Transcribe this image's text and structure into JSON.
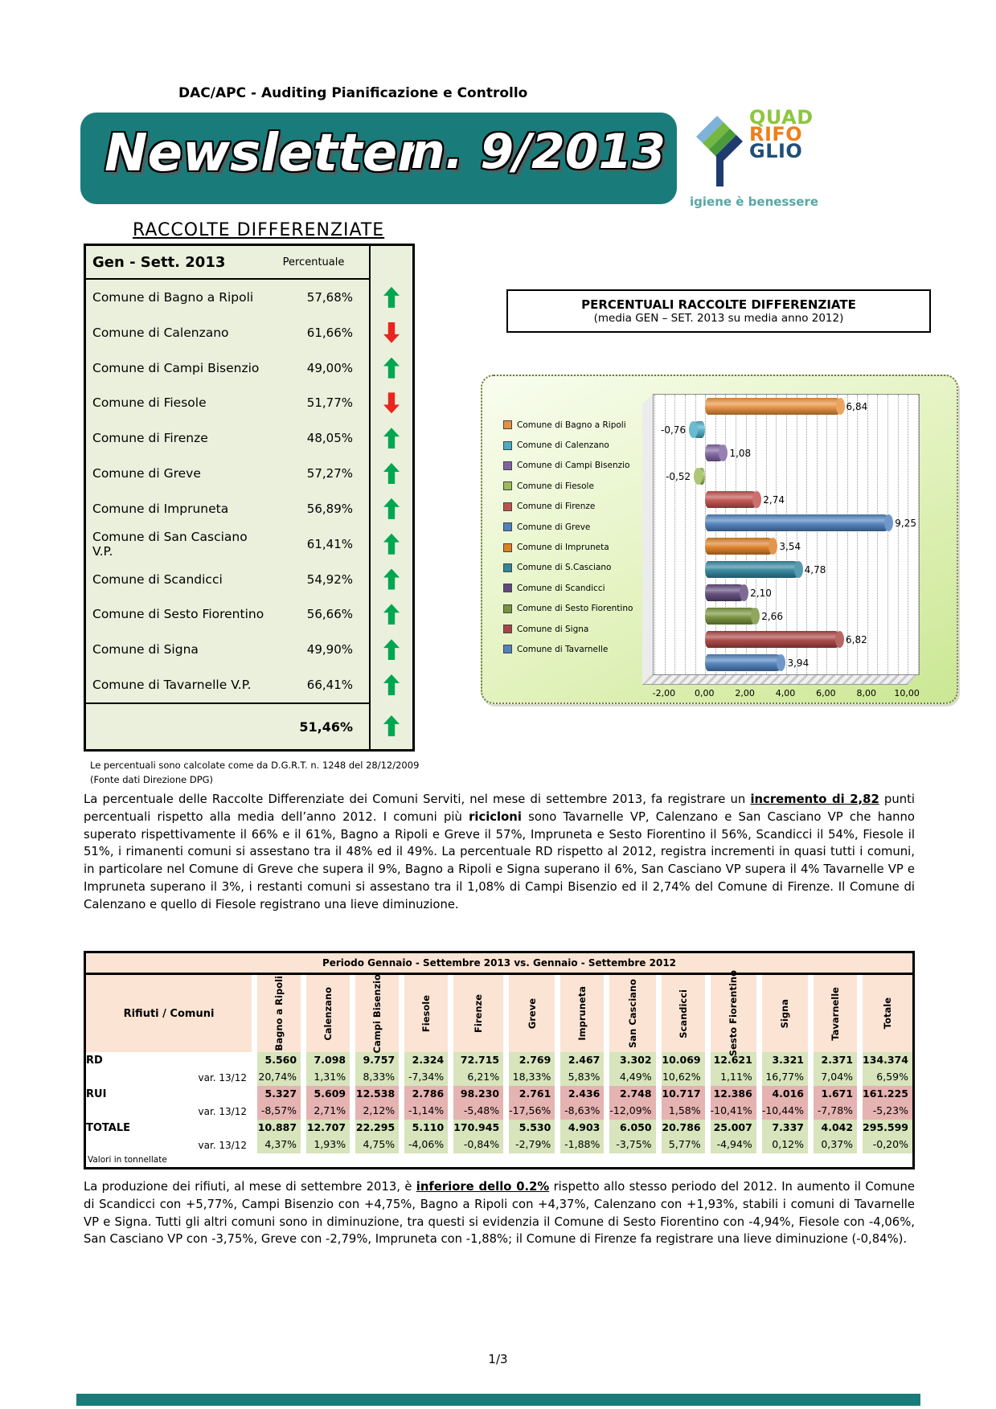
{
  "header": {
    "department": "DAC/APC - Auditing Pianificazione e Controllo",
    "banner_title": "Newsletter",
    "banner_number": "n. 9/2013",
    "logo": {
      "segments": [
        {
          "text": "QUAD",
          "color": "#8dc63f"
        },
        {
          "text": "RIFO",
          "color": "#ef7f1a"
        },
        {
          "text": "GLIO",
          "color": "#1f4e79"
        }
      ],
      "tagline": "igiene è benessere",
      "emblem_colors": [
        "#7fb2d9",
        "#74b843",
        "#4a9b3a",
        "#1e3b6e"
      ]
    }
  },
  "section_title": "RACCOLTE DIFFERENZIATE",
  "rd_table": {
    "period_label": "Gen - Sett.  2013",
    "value_header": "Percentuale",
    "rows": [
      {
        "label": "Comune di Bagno a Ripoli",
        "value": "57,68%",
        "trend": "up"
      },
      {
        "label": "Comune di Calenzano",
        "value": "61,66%",
        "trend": "down"
      },
      {
        "label": "Comune di Campi Bisenzio",
        "value": "49,00%",
        "trend": "up"
      },
      {
        "label": "Comune di Fiesole",
        "value": "51,77%",
        "trend": "down"
      },
      {
        "label": "Comune di Firenze",
        "value": "48,05%",
        "trend": "up"
      },
      {
        "label": "Comune di Greve",
        "value": "57,27%",
        "trend": "up"
      },
      {
        "label": "Comune di Impruneta",
        "value": "56,89%",
        "trend": "up"
      },
      {
        "label": "Comune di San Casciano V.P.",
        "value": "61,41%",
        "trend": "up"
      },
      {
        "label": "Comune di Scandicci",
        "value": "54,92%",
        "trend": "up"
      },
      {
        "label": "Comune di Sesto Fiorentino",
        "value": "56,66%",
        "trend": "up"
      },
      {
        "label": "Comune di Signa",
        "value": "49,90%",
        "trend": "up"
      },
      {
        "label": "Comune di Tavarnelle V.P.",
        "value": "66,41%",
        "trend": "up"
      }
    ],
    "total": {
      "value": "51,46%",
      "trend": "up"
    },
    "footnote_line1": "Le percentuali sono calcolate come da D.G.R.T. n. 1248 del 28/12/2009",
    "footnote_line2": "(Fonte dati Direzione DPG)",
    "arrow_colors": {
      "up": "#00a650",
      "down": "#e8251f"
    }
  },
  "chart_data": {
    "type": "bar",
    "orientation": "horizontal",
    "title": "PERCENTUALI RACCOLTE DIFFERENZIATE",
    "subtitle": "(media GEN – SET. 2013 su media anno 2012)",
    "categories": [
      "Comune di Bagno a Ripoli",
      "Comune di Calenzano",
      "Comune di Campi Bisenzio",
      "Comune di Fiesole",
      "Comune di Firenze",
      "Comune di Greve",
      "Comune di Impruneta",
      "Comune di S.Casciano",
      "Comune di Scandicci",
      "Comune di Sesto Fiorentino",
      "Comune di Signa",
      "Comune di Tavarnelle"
    ],
    "values": [
      6.84,
      -0.76,
      1.08,
      -0.52,
      2.74,
      9.25,
      3.54,
      4.78,
      2.1,
      2.66,
      6.82,
      3.94
    ],
    "value_labels": [
      "6,84",
      "-0,76",
      "1,08",
      "-0,52",
      "2,74",
      "9,25",
      "3,54",
      "4,78",
      "2,10",
      "2,66",
      "6,82",
      "3,94"
    ],
    "colors": [
      "#E8913D",
      "#4BACC6",
      "#8064A2",
      "#9BBB59",
      "#C0504D",
      "#4F81BD",
      "#DD8026",
      "#31859C",
      "#604A7B",
      "#77933C",
      "#A94442",
      "#4F81BD"
    ],
    "xlim": [
      -2.55,
      10.55
    ],
    "x_ticks": {
      "values": [
        -2,
        0,
        2,
        4,
        6,
        8,
        10
      ],
      "labels": [
        "-2,00",
        "0,00",
        "2,00",
        "4,00",
        "6,00",
        "8,00",
        "10,00"
      ]
    },
    "grid": true,
    "legend_position": "left"
  },
  "paragraph1": {
    "segments": [
      {
        "text": "La percentuale delle Raccolte Differenziate dei Comuni Serviti, nel mese di settembre 2013, fa registrare un "
      },
      {
        "text": "incremento di 2,82",
        "bold": true,
        "underline": true
      },
      {
        "text": " punti percentuali rispetto alla media dell’anno 2012. I comuni più "
      },
      {
        "text": "ricicloni",
        "bold": true
      },
      {
        "text": " sono Tavarnelle VP, Calenzano e San Casciano VP che hanno superato rispettivamente il 66% e il 61%, Bagno a Ripoli e Greve il 57%, Impruneta e Sesto Fiorentino il 56%, Scandicci il 54%, Fiesole il 51%, i rimanenti comuni si assestano tra il 48% ed il 49%. La percentuale RD rispetto al 2012, registra incrementi in quasi tutti i comuni, in particolare nel Comune di Greve che supera il 9%, Bagno a Ripoli e Signa superano il 6%, San Casciano VP supera il 4% Tavarnelle VP e Impruneta superano il 3%, i restanti comuni si assestano tra il 1,08% di Campi Bisenzio ed il 2,74% del Comune di Firenze. Il Comune di Calenzano e quello di Fiesole registrano una lieve diminuzione."
      }
    ]
  },
  "waste_table": {
    "title": "Periodo Gennaio  - Settembre  2013 vs. Gennaio  -  Settembre 2012",
    "corner_label": "Rifiuti /  Comuni",
    "columns": [
      "Bagno  a Ripoli",
      "Calenzano",
      "Campi Bisenzio",
      "Fiesole",
      "Firenze",
      "Greve",
      "Impruneta",
      "San Casciano",
      "Scandicci",
      "Sesto Fiorentino",
      "Signa",
      "Tavarnelle",
      "Totale"
    ],
    "rows": [
      {
        "label": "RD",
        "tone": "green",
        "bold": true,
        "values": [
          "5.560",
          "7.098",
          "9.757",
          "2.324",
          "72.715",
          "2.769",
          "2.467",
          "3.302",
          "10.069",
          "12.621",
          "3.321",
          "2.371",
          "134.374"
        ]
      },
      {
        "label": "var. 13/12",
        "tone": "green",
        "bold": false,
        "values": [
          "20,74%",
          "1,31%",
          "8,33%",
          "-7,34%",
          "6,21%",
          "18,33%",
          "5,83%",
          "4,49%",
          "10,62%",
          "1,11%",
          "16,77%",
          "7,04%",
          "6,59%"
        ]
      },
      {
        "label": "RUI",
        "tone": "pink",
        "bold": true,
        "values": [
          "5.327",
          "5.609",
          "12.538",
          "2.786",
          "98.230",
          "2.761",
          "2.436",
          "2.748",
          "10.717",
          "12.386",
          "4.016",
          "1.671",
          "161.225"
        ]
      },
      {
        "label": "var. 13/12",
        "tone": "pink",
        "bold": false,
        "values": [
          "-8,57%",
          "2,71%",
          "2,12%",
          "-1,14%",
          "-5,48%",
          "-17,56%",
          "-8,63%",
          "-12,09%",
          "1,58%",
          "-10,41%",
          "-10,44%",
          "-7,78%",
          "-5,23%"
        ]
      },
      {
        "label": "TOTALE",
        "tone": "green",
        "bold": true,
        "values": [
          "10.887",
          "12.707",
          "22.295",
          "5.110",
          "170.945",
          "5.530",
          "4.903",
          "6.050",
          "20.786",
          "25.007",
          "7.337",
          "4.042",
          "295.599"
        ]
      },
      {
        "label": "var. 13/12",
        "tone": "green",
        "bold": false,
        "values": [
          "4,37%",
          "1,93%",
          "4,75%",
          "-4,06%",
          "-0,84%",
          "-2,79%",
          "-1,88%",
          "-3,75%",
          "5,77%",
          "-4,94%",
          "0,12%",
          "0,37%",
          "-0,20%"
        ]
      }
    ],
    "footnote": "Valori in tonnellate",
    "cell_colors": {
      "green": "#d7e4bc",
      "pink": "#e5b3b1",
      "header": "#fbe4d4"
    }
  },
  "paragraph2": {
    "segments": [
      {
        "text": "La produzione dei rifiuti, al mese di settembre 2013, è "
      },
      {
        "text": "inferiore dello  0.2%",
        "bold": true,
        "underline": true
      },
      {
        "text": " rispetto allo stesso periodo del  2012.  In aumento il Comune di Scandicci con +5,77%, Campi Bisenzio con +4,75%, Bagno a Ripoli con +4,37%, Calenzano con +1,93%, stabili i comuni di Tavarnelle VP e Signa. Tutti gli altri comuni sono in diminuzione, tra  questi si evidenzia il Comune di Sesto Fiorentino con -4,94%, Fiesole con -4,06%, San Casciano VP con -3,75%, Greve con -2,79%, Impruneta con -1,88%; il Comune di Firenze fa registrare una lieve diminuzione (-0,84%)."
      }
    ]
  },
  "footer": {
    "page_number": "1/3"
  }
}
